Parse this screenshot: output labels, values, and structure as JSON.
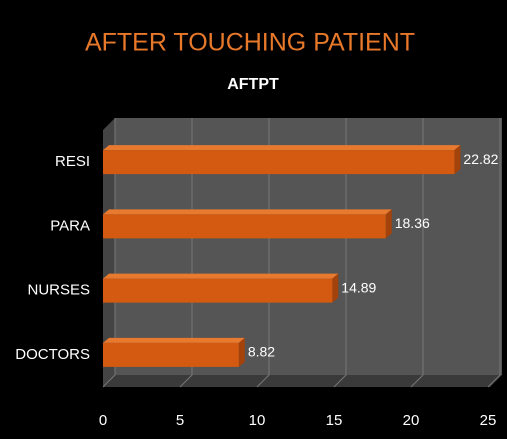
{
  "chart_data": {
    "type": "bar",
    "orientation": "horizontal",
    "title": "AFTER TOUCHING PATIENT",
    "subtitle": "AFTPT",
    "categories": [
      "RESI",
      "PARA",
      "NURSES",
      "DOCTORS"
    ],
    "values": [
      22.82,
      18.36,
      14.89,
      8.82
    ],
    "color": "#d35a10",
    "xlim": [
      0,
      25
    ],
    "xticks": [
      0,
      5,
      10,
      15,
      20,
      25
    ],
    "grid": true
  }
}
